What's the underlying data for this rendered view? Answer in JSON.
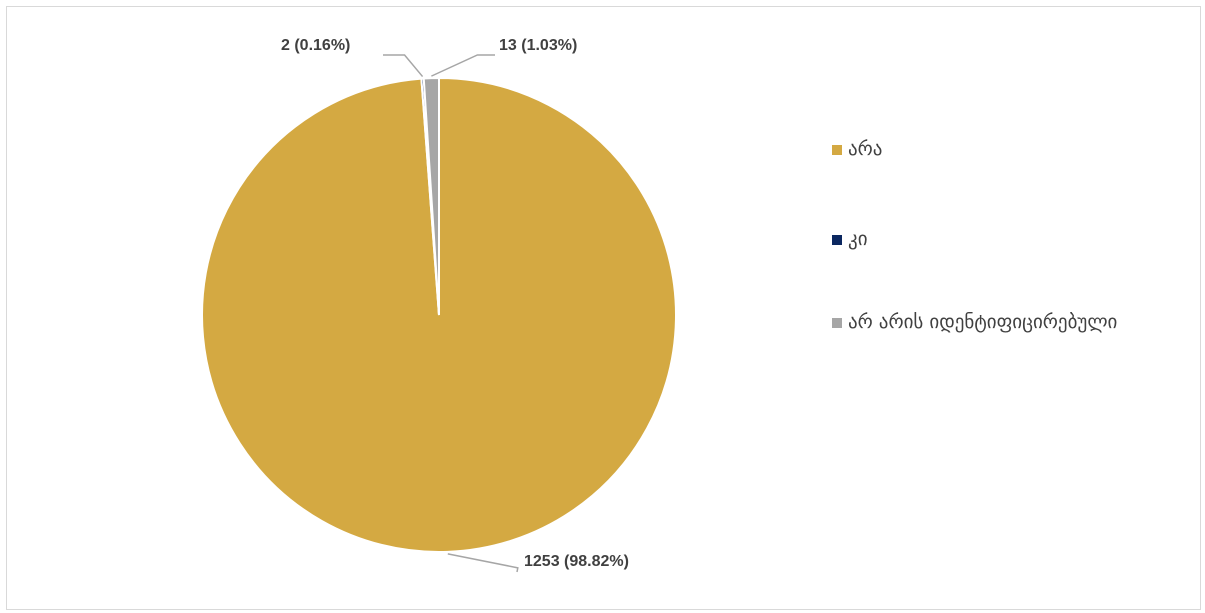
{
  "chart_data": {
    "type": "pie",
    "series": [
      {
        "name": "არა",
        "value": 1253,
        "label": "1253 (98.82%)",
        "color": "#d4a942"
      },
      {
        "name": "კი",
        "value": 2,
        "label": "2 (0.16%)",
        "color": "#0b2760"
      },
      {
        "name": "არ არის იდენტიფიცირებული",
        "value": 13,
        "label": "13  (1.03%)",
        "color": "#a6a6a6"
      }
    ],
    "legend_position": "right"
  }
}
